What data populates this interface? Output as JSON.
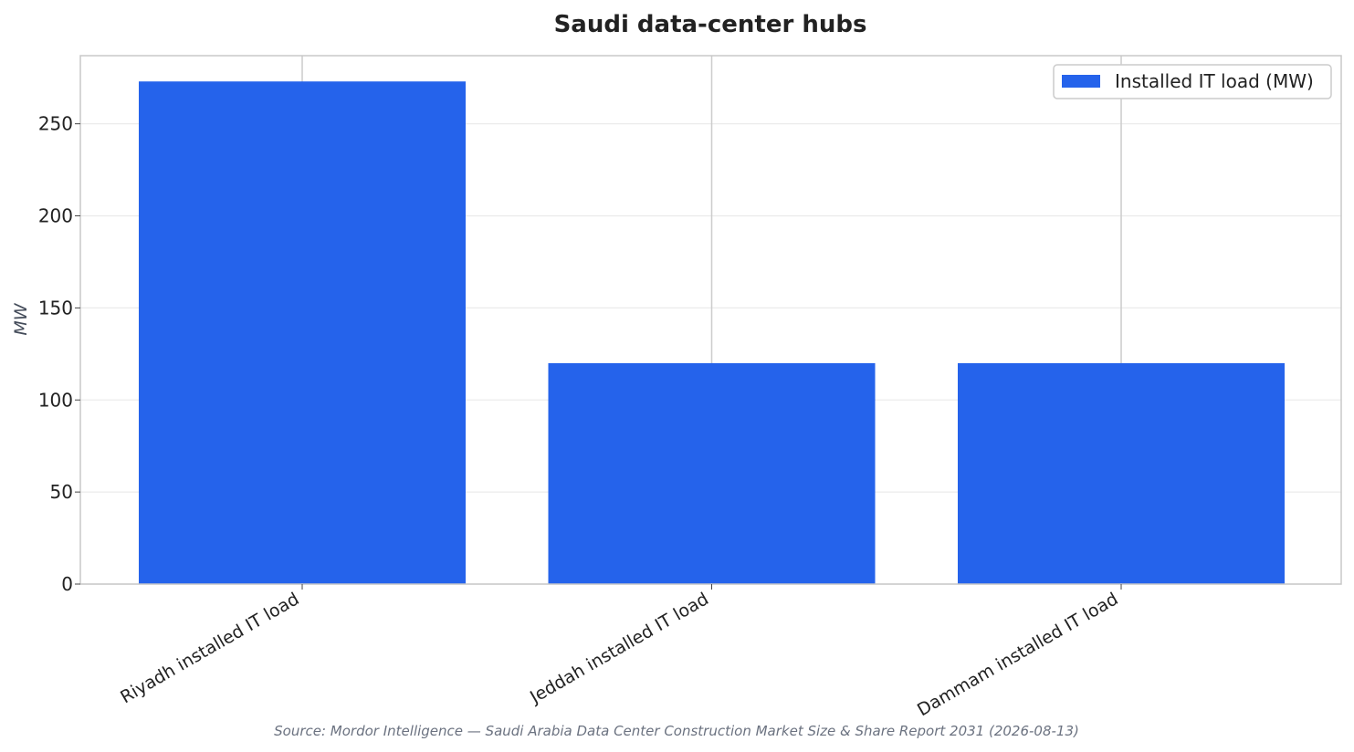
{
  "chart_data": {
    "type": "bar",
    "title": "Saudi data-center hubs",
    "xlabel": "",
    "ylabel": "MW",
    "categories": [
      "Riyadh installed IT load",
      "Jeddah installed IT load",
      "Dammam installed IT load"
    ],
    "series": [
      {
        "name": "Installed IT load (MW)",
        "values": [
          273,
          120,
          120
        ],
        "color": "#2563eb"
      }
    ],
    "ylim": [
      0,
      287
    ],
    "yticks": [
      0,
      50,
      100,
      150,
      200,
      250
    ],
    "grid": true,
    "legend_position": "top-right",
    "source": "Source: Mordor Intelligence — Saudi Arabia Data Center Construction Market Size & Share Report 2031 (2026-08-13)"
  }
}
